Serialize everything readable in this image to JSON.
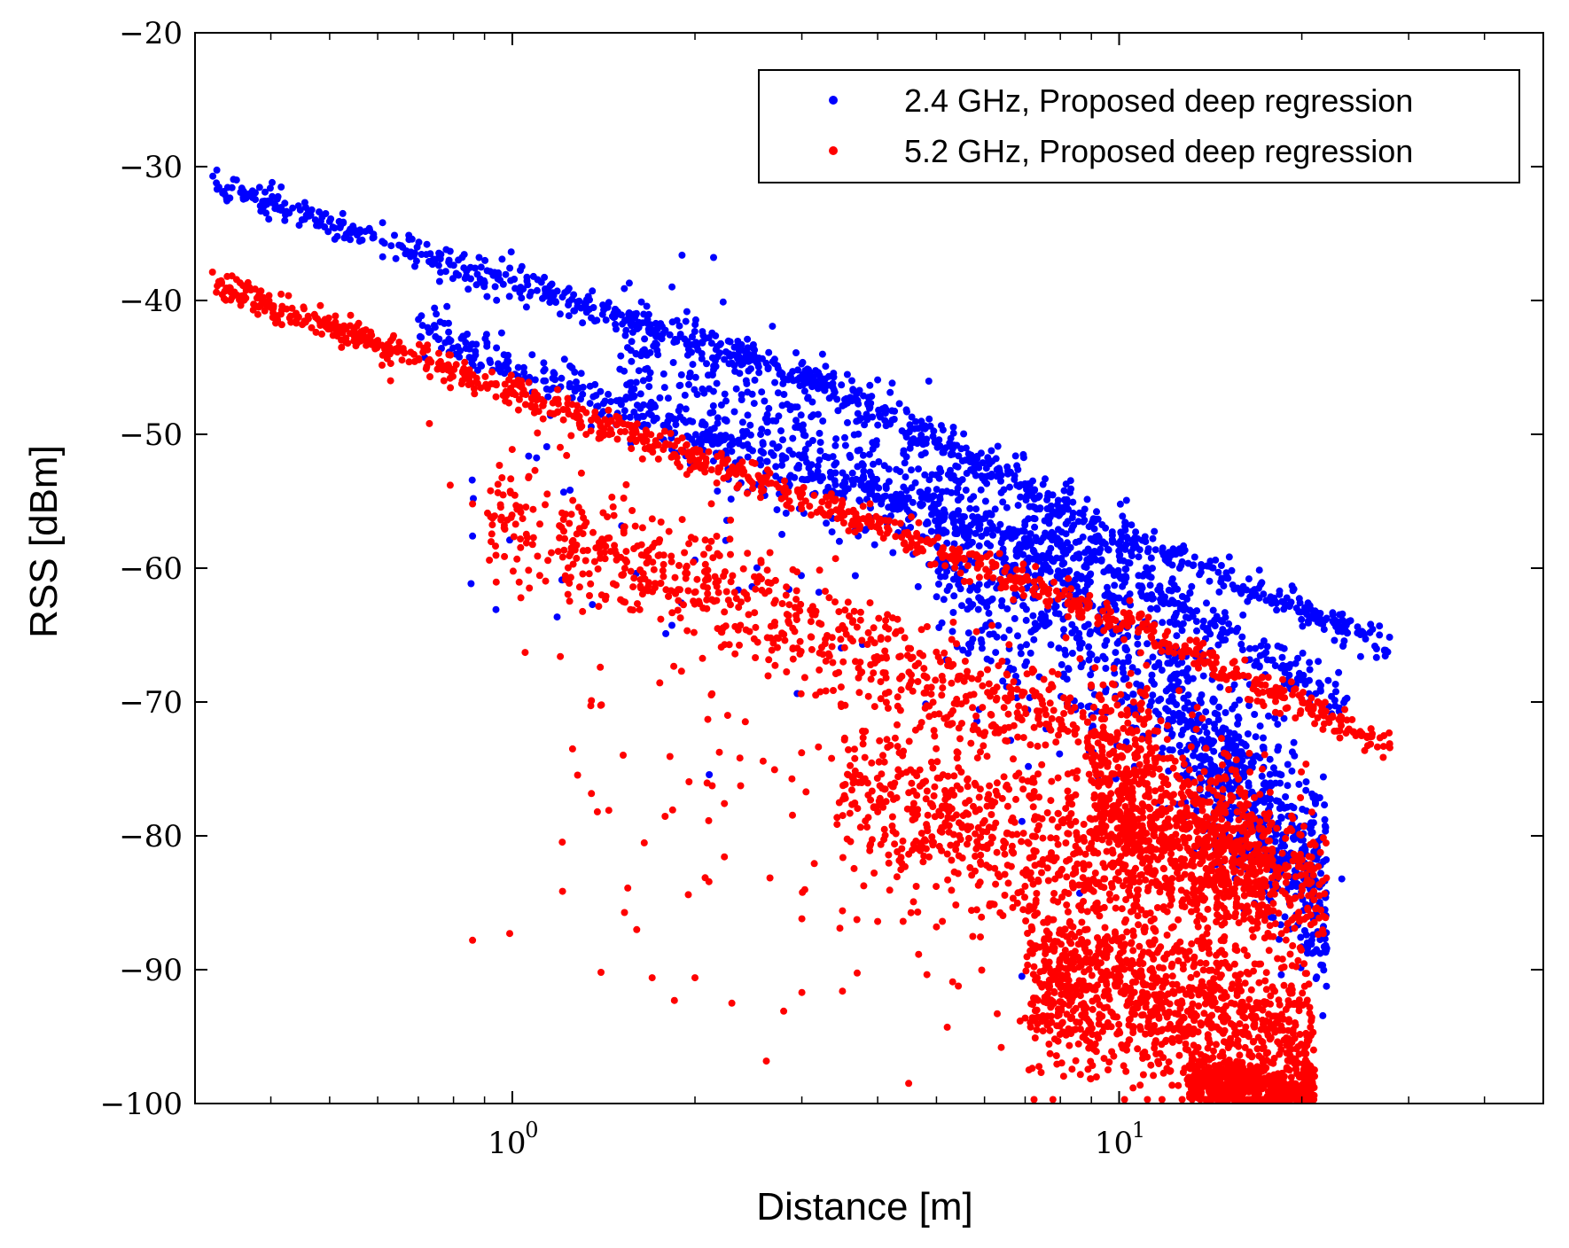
{
  "chart_data": {
    "type": "scatter",
    "title": "",
    "xlabel": "Distance [m]",
    "ylabel": "RSS [dBm]",
    "xscale": "log",
    "xlim": [
      0.3,
      50
    ],
    "ylim": [
      -100,
      -20
    ],
    "yticks": [
      -20,
      -30,
      -40,
      -50,
      -60,
      -70,
      -80,
      -90,
      -100
    ],
    "ytick_labels": [
      "−20",
      "−30",
      "−40",
      "−50",
      "−60",
      "−70",
      "−80",
      "−90",
      "−100"
    ],
    "xtick_major": [
      {
        "base": "10",
        "exp": "0",
        "value": 1
      },
      {
        "base": "10",
        "exp": "1",
        "value": 10
      }
    ],
    "xtick_minor": [
      0.4,
      0.5,
      0.6,
      0.7,
      0.8,
      0.9,
      2,
      3,
      4,
      5,
      6,
      7,
      8,
      9,
      20,
      30,
      40
    ],
    "grid": false,
    "legend_position": "top-right",
    "series": [
      {
        "name": "2.4 GHz, Proposed deep regression",
        "color": "#0000ff",
        "groups": [
          {
            "x_range": [
              0.32,
              28
            ],
            "anchors": [
              [
                0.32,
                -31.3
              ],
              [
                1.0,
                -38.8
              ],
              [
                3.0,
                -45.5
              ],
              [
                10.0,
                -57.5
              ],
              [
                28.0,
                -66.0
              ]
            ],
            "count": 900,
            "spread": 0.6,
            "clip": [
              -100,
              -20
            ]
          },
          {
            "x_range": [
              0.7,
              24
            ],
            "anchors": [
              [
                0.7,
                -42.0
              ],
              [
                2.0,
                -50.0
              ],
              [
                10.0,
                -60.0
              ],
              [
                24.0,
                -70.5
              ]
            ],
            "count": 650,
            "spread": 0.8,
            "clip": [
              -100,
              -20
            ]
          },
          {
            "x_range": [
              1.5,
              10.5
            ],
            "anchors": [
              [
                1.5,
                -44.5
              ],
              [
                10.5,
                -61.0
              ]
            ],
            "count": 600,
            "spread": 3.0,
            "clip": [
              -100,
              -20
            ]
          },
          {
            "x_range": [
              5.0,
              12.0
            ],
            "anchors": [
              [
                5.0,
                -60.0
              ],
              [
                12.0,
                -68.0
              ]
            ],
            "count": 400,
            "spread": 3.5,
            "clip": [
              -100,
              -20
            ]
          },
          {
            "x_range": [
              12.0,
              22.0
            ],
            "anchors": [
              [
                12.0,
                -70.0
              ],
              [
                16.0,
                -77.0
              ],
              [
                22.0,
                -84.0
              ]
            ],
            "count": 700,
            "spread": 3.5,
            "clip": [
              -100,
              -20
            ]
          },
          {
            "x_range": [
              0.8,
              24
            ],
            "anchors": [
              [
                0.8,
                -55.0
              ],
              [
                3.0,
                -62.0
              ],
              [
                24.0,
                -78.0
              ]
            ],
            "count": 60,
            "spread": 8.0,
            "clip": [
              -100,
              -20
            ]
          }
        ],
        "extras": [
          [
            0.86,
            -57.6
          ],
          [
            0.99,
            -57.9
          ],
          [
            1.6,
            -60.4
          ],
          [
            2.0,
            -59.4
          ],
          [
            1.9,
            -62.6
          ],
          [
            3.2,
            -61.8
          ],
          [
            14.0,
            -64.5
          ],
          [
            16.0,
            -63.5
          ],
          [
            23.0,
            -67.8
          ],
          [
            25.0,
            -66.6
          ]
        ]
      },
      {
        "name": "5.2 GHz, Proposed deep regression",
        "color": "#ff0000",
        "groups": [
          {
            "x_range": [
              0.32,
              28
            ],
            "anchors": [
              [
                0.32,
                -38.8
              ],
              [
                1.0,
                -46.8
              ],
              [
                3.0,
                -54.6
              ],
              [
                10.0,
                -63.8
              ],
              [
                28.0,
                -73.5
              ]
            ],
            "count": 1000,
            "spread": 0.6,
            "clip": [
              -100,
              -20
            ]
          },
          {
            "x_range": [
              0.9,
              11.5
            ],
            "anchors": [
              [
                0.9,
                -56.0
              ],
              [
                2.5,
                -62.5
              ],
              [
                6.0,
                -70.5
              ],
              [
                11.5,
                -72.5
              ]
            ],
            "count": 800,
            "spread": 2.2,
            "clip": [
              -100,
              -20
            ]
          },
          {
            "x_range": [
              3.5,
              22.0
            ],
            "anchors": [
              [
                3.5,
                -76.5
              ],
              [
                6.0,
                -80.0
              ],
              [
                12.0,
                -81.5
              ],
              [
                22.0,
                -83.5
              ]
            ],
            "count": 900,
            "spread": 2.6,
            "clip": [
              -100,
              -20
            ]
          },
          {
            "x_range": [
              9.0,
              18.0
            ],
            "anchors": [
              [
                9.0,
                -76.0
              ],
              [
                18.0,
                -83.0
              ]
            ],
            "count": 700,
            "spread": 3.2,
            "clip": [
              -100,
              -20
            ]
          },
          {
            "x_range": [
              7.0,
              21.0
            ],
            "anchors": [
              [
                7.0,
                -90.0
              ],
              [
                14.0,
                -93.5
              ],
              [
                21.0,
                -97.0
              ]
            ],
            "count": 1200,
            "spread": 3.2,
            "clip": [
              -100,
              -20
            ]
          },
          {
            "x_range": [
              13.0,
              21.0
            ],
            "anchors": [
              [
                13.0,
                -98.0
              ],
              [
                21.0,
                -99.3
              ]
            ],
            "count": 450,
            "spread": 0.8,
            "clip": [
              -100,
              -20
            ]
          },
          {
            "x_range": [
              1.2,
              20.0
            ],
            "anchors": [
              [
                1.2,
                -75.0
              ],
              [
                4.0,
                -80.0
              ],
              [
                20.0,
                -90.0
              ]
            ],
            "count": 160,
            "spread": 7.0,
            "clip": [
              -100,
              -20
            ]
          }
        ],
        "extras": [
          [
            0.63,
            -46.0
          ],
          [
            0.73,
            -49.2
          ],
          [
            0.79,
            -53.8
          ],
          [
            0.86,
            -55.2
          ],
          [
            0.96,
            -56.2
          ],
          [
            1.05,
            -66.3
          ],
          [
            1.2,
            -66.6
          ],
          [
            1.35,
            -69.9
          ],
          [
            1.9,
            -67.7
          ],
          [
            2.1,
            -71.3
          ],
          [
            1.55,
            -83.9
          ],
          [
            1.95,
            -84.4
          ],
          [
            0.86,
            -87.8
          ],
          [
            0.99,
            -87.3
          ],
          [
            1.4,
            -90.2
          ],
          [
            1.7,
            -90.6
          ],
          [
            1.85,
            -92.3
          ],
          [
            2.0,
            -90.6
          ],
          [
            2.3,
            -92.5
          ],
          [
            2.8,
            -93.1
          ],
          [
            3.0,
            -91.7
          ],
          [
            3.5,
            -91.6
          ],
          [
            3.0,
            -86.2
          ],
          [
            3.5,
            -85.6
          ],
          [
            4.0,
            -86.4
          ],
          [
            4.5,
            -98.5
          ],
          [
            5.0,
            -86.8
          ],
          [
            1.3,
            -52.9
          ],
          [
            1.25,
            -50.1
          ],
          [
            1.1,
            -49.9
          ]
        ]
      }
    ]
  }
}
